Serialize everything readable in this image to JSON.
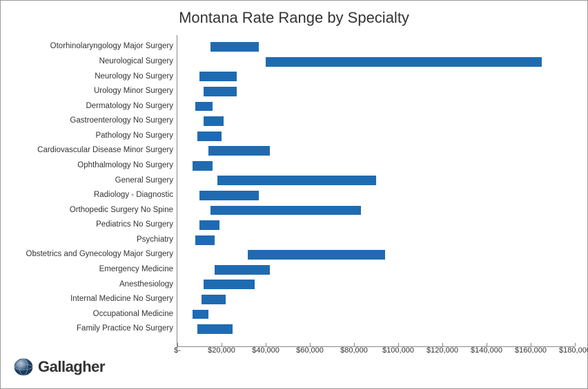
{
  "chart": {
    "type": "range-bar-horizontal",
    "title": "Montana Rate Range by Specialty",
    "title_fontsize": 22,
    "title_color": "#333333",
    "background_color": "#ffffff",
    "border_color": "#999999",
    "bar_color": "#1f6bb2",
    "axis_color": "#888888",
    "label_fontsize": 11.5,
    "tick_fontsize": 11,
    "xlim": [
      0,
      180000
    ],
    "xtick_step": 20000,
    "xtick_labels": [
      "$-",
      "$20,000",
      "$40,000",
      "$60,000",
      "$80,000",
      "$100,000",
      "$120,000",
      "$140,000",
      "$160,000",
      "$180,000"
    ],
    "categories": [
      "Otorhinolaryngology Major Surgery",
      "Neurological Surgery",
      "Neurology No Surgery",
      "Urology Minor Surgery",
      "Dermatology No Surgery",
      "Gastroenterology No Surgery",
      "Pathology No Surgery",
      "Cardiovascular Disease Minor Surgery",
      "Ophthalmology No Surgery",
      "General Surgery",
      "Radiology - Diagnostic",
      "Orthopedic Surgery No Spine",
      "Pediatrics No Surgery",
      "Psychiatry",
      "Obstetrics and Gynecology Major Surgery",
      "Emergency Medicine",
      "Anesthesiology",
      "Internal Medicine No Surgery",
      "Occupational Medicine",
      "Family Practice No Surgery"
    ],
    "ranges": [
      [
        15000,
        37000
      ],
      [
        40000,
        165000
      ],
      [
        10000,
        27000
      ],
      [
        12000,
        27000
      ],
      [
        8000,
        16000
      ],
      [
        12000,
        21000
      ],
      [
        9000,
        20000
      ],
      [
        14000,
        42000
      ],
      [
        7000,
        16000
      ],
      [
        18000,
        90000
      ],
      [
        10000,
        37000
      ],
      [
        15000,
        83000
      ],
      [
        10000,
        19000
      ],
      [
        8000,
        17000
      ],
      [
        32000,
        94000
      ],
      [
        17000,
        42000
      ],
      [
        12000,
        35000
      ],
      [
        11000,
        22000
      ],
      [
        7000,
        14000
      ],
      [
        9000,
        25000
      ]
    ]
  },
  "logo": {
    "text": "Gallagher",
    "globe_color_dark": "#1a3a5c",
    "globe_color_mid": "#5a7a9a",
    "globe_color_light": "#c8d4e0"
  }
}
